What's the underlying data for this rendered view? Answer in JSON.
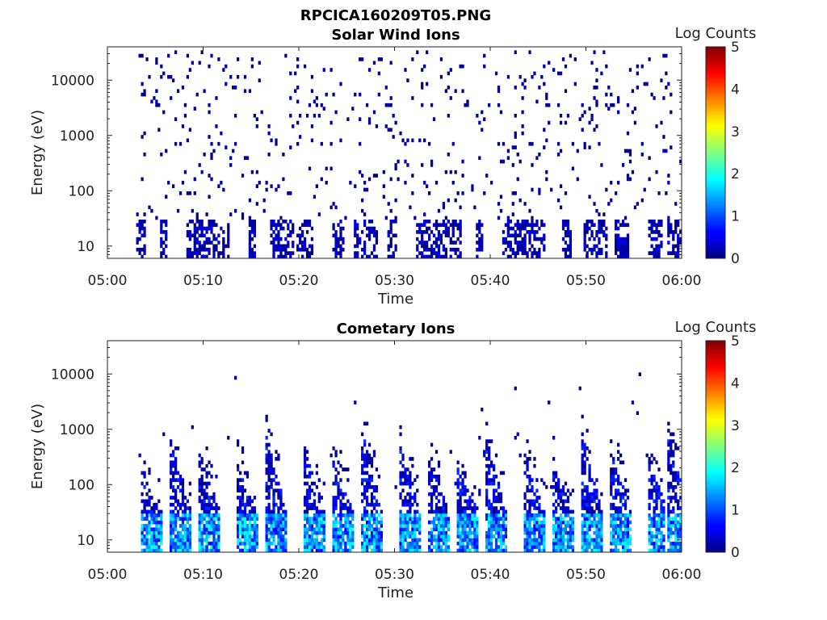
{
  "figure_title": "RPCICA160209T05.PNG",
  "chart_data": [
    {
      "type": "heatmap",
      "title": "Solar Wind Ions",
      "xlabel": "Time",
      "ylabel": "Energy (eV)",
      "x_ticks": [
        "05:00",
        "05:10",
        "05:20",
        "05:30",
        "05:40",
        "05:50",
        "06:00"
      ],
      "xlim": [
        "05:00",
        "06:00"
      ],
      "y_ticks": [
        "10",
        "100",
        "1000",
        "10000"
      ],
      "y_scale": "log",
      "ylim": [
        6,
        40000
      ],
      "colorbar": {
        "label": "Log Counts",
        "ticks": [
          "0",
          "1",
          "2",
          "3",
          "4",
          "5"
        ],
        "range": [
          0,
          5
        ],
        "colormap": "jet"
      },
      "grid": false,
      "data_summary": {
        "time_start": "05:03",
        "time_end": "06:00",
        "low_energy_band_eV": [
          6,
          30
        ],
        "low_energy_log_counts": [
          0,
          0.5
        ],
        "high_energy_sparse_eV": [
          30,
          30000
        ],
        "high_energy_log_counts": [
          0,
          0.3
        ]
      }
    },
    {
      "type": "heatmap",
      "title": "Cometary Ions",
      "xlabel": "Time",
      "ylabel": "Energy (eV)",
      "x_ticks": [
        "05:00",
        "05:10",
        "05:20",
        "05:30",
        "05:40",
        "05:50",
        "06:00"
      ],
      "xlim": [
        "05:00",
        "06:00"
      ],
      "y_ticks": [
        "10",
        "100",
        "1000",
        "10000"
      ],
      "y_scale": "log",
      "ylim": [
        6,
        40000
      ],
      "colorbar": {
        "label": "Log Counts",
        "ticks": [
          "0",
          "1",
          "2",
          "3",
          "4",
          "5"
        ],
        "range": [
          0,
          5
        ],
        "colormap": "jet"
      },
      "grid": false,
      "data_summary": {
        "time_start": "05:03",
        "time_end": "06:00",
        "burst_times": [
          "05:04",
          "05:07",
          "05:10",
          "05:14",
          "05:17",
          "05:21",
          "05:24",
          "05:27",
          "05:31",
          "05:34",
          "05:37",
          "05:40",
          "05:44",
          "05:47",
          "05:50",
          "05:53",
          "05:57",
          "05:59"
        ],
        "burst_peak_log_counts": 2.0,
        "burst_base_energy_eV": [
          6,
          30
        ],
        "burst_top_energy_eV": [
          200,
          1200
        ]
      }
    }
  ]
}
